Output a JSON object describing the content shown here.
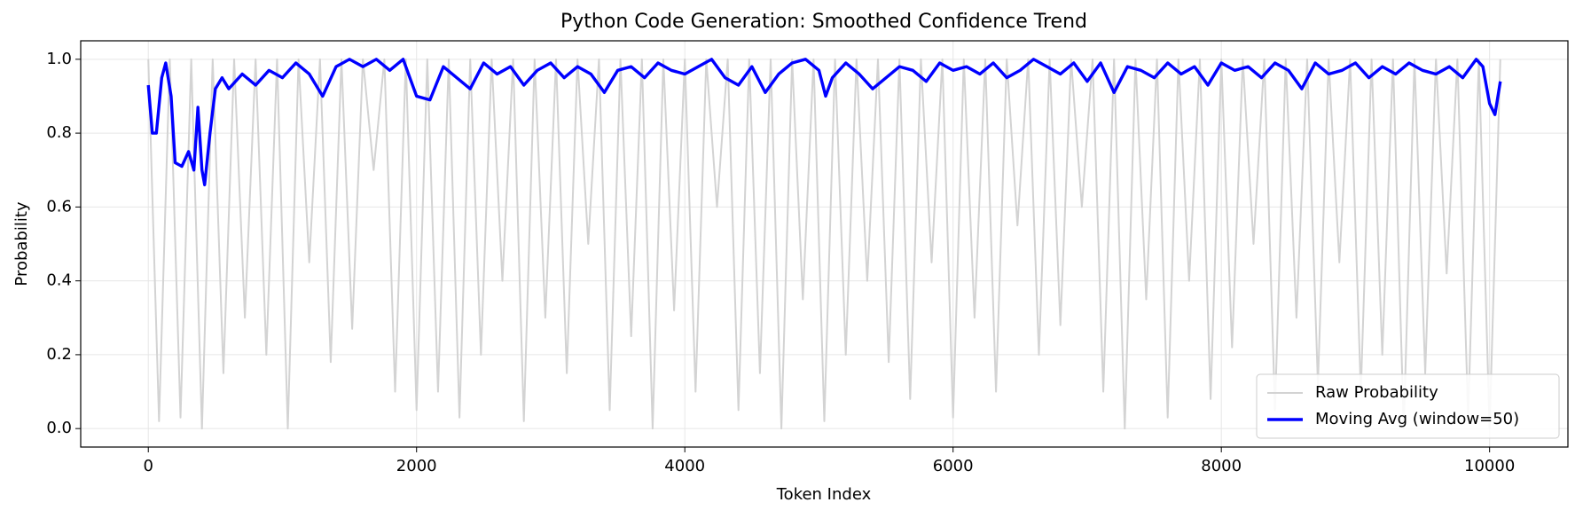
{
  "chart_data": {
    "type": "line",
    "title": "Python Code Generation: Smoothed Confidence Trend",
    "x_label": "Token Index",
    "y_label": "Probability",
    "xlim": [
      -504,
      10584
    ],
    "xticks": [
      0,
      2000,
      4000,
      6000,
      8000,
      10000
    ],
    "ylim": [
      -0.05,
      1.05
    ],
    "yticks": [
      0.0,
      0.2,
      0.4,
      0.6,
      0.8,
      1.0
    ],
    "grid": true,
    "legend": "lower right",
    "series": [
      {
        "name": "Raw Probability",
        "color": "#d3d3d3",
        "x": [
          0,
          80,
          160,
          240,
          320,
          400,
          480,
          560,
          640,
          720,
          800,
          880,
          960,
          1040,
          1120,
          1200,
          1280,
          1360,
          1440,
          1520,
          1600,
          1680,
          1760,
          1840,
          1920,
          2000,
          2080,
          2160,
          2240,
          2320,
          2400,
          2480,
          2560,
          2640,
          2720,
          2800,
          2880,
          2960,
          3040,
          3120,
          3200,
          3280,
          3360,
          3440,
          3520,
          3600,
          3680,
          3760,
          3840,
          3920,
          4000,
          4080,
          4160,
          4240,
          4320,
          4400,
          4480,
          4560,
          4640,
          4720,
          4800,
          4880,
          4960,
          5040,
          5120,
          5200,
          5280,
          5360,
          5440,
          5520,
          5600,
          5680,
          5760,
          5840,
          5920,
          6000,
          6080,
          6160,
          6240,
          6320,
          6400,
          6480,
          6560,
          6640,
          6720,
          6800,
          6880,
          6960,
          7040,
          7120,
          7200,
          7280,
          7360,
          7440,
          7520,
          7600,
          7680,
          7760,
          7840,
          7920,
          8000,
          8080,
          8160,
          8240,
          8320,
          8400,
          8480,
          8560,
          8640,
          8720,
          8800,
          8880,
          8960,
          9040,
          9120,
          9200,
          9280,
          9360,
          9440,
          9520,
          9600,
          9680,
          9760,
          9840,
          9920,
          10000,
          10080
        ],
        "values": [
          1.0,
          0.02,
          1.0,
          0.03,
          1.0,
          0.0,
          1.0,
          0.15,
          1.0,
          0.3,
          1.0,
          0.2,
          1.0,
          0.0,
          1.0,
          0.45,
          1.0,
          0.18,
          1.0,
          0.27,
          1.0,
          0.7,
          1.0,
          0.1,
          1.0,
          0.05,
          1.0,
          0.1,
          1.0,
          0.03,
          1.0,
          0.2,
          1.0,
          0.4,
          1.0,
          0.02,
          1.0,
          0.3,
          1.0,
          0.15,
          1.0,
          0.5,
          1.0,
          0.05,
          1.0,
          0.25,
          1.0,
          0.0,
          1.0,
          0.32,
          1.0,
          0.1,
          1.0,
          0.6,
          1.0,
          0.05,
          1.0,
          0.15,
          1.0,
          0.0,
          1.0,
          0.35,
          1.0,
          0.02,
          1.0,
          0.2,
          1.0,
          0.4,
          1.0,
          0.18,
          1.0,
          0.08,
          1.0,
          0.45,
          1.0,
          0.03,
          1.0,
          0.3,
          1.0,
          0.1,
          1.0,
          0.55,
          1.0,
          0.2,
          1.0,
          0.28,
          1.0,
          0.6,
          1.0,
          0.1,
          1.0,
          0.0,
          1.0,
          0.35,
          1.0,
          0.03,
          1.0,
          0.4,
          1.0,
          0.08,
          1.0,
          0.22,
          1.0,
          0.5,
          1.0,
          0.05,
          1.0,
          0.3,
          1.0,
          0.12,
          1.0,
          0.45,
          1.0,
          0.1,
          1.0,
          0.2,
          1.0,
          0.0,
          1.0,
          0.15,
          1.0,
          0.42,
          1.0,
          0.03,
          1.0,
          0.0,
          1.0
        ]
      },
      {
        "name": "Moving Avg (window=50)",
        "color": "#0000ff",
        "x": [
          0,
          30,
          60,
          100,
          130,
          170,
          200,
          250,
          300,
          340,
          370,
          400,
          420,
          460,
          500,
          550,
          600,
          700,
          800,
          900,
          1000,
          1100,
          1200,
          1300,
          1400,
          1500,
          1600,
          1700,
          1800,
          1900,
          2000,
          2100,
          2200,
          2300,
          2400,
          2500,
          2600,
          2700,
          2800,
          2900,
          3000,
          3100,
          3200,
          3300,
          3400,
          3500,
          3600,
          3700,
          3800,
          3900,
          4000,
          4100,
          4200,
          4300,
          4400,
          4500,
          4600,
          4700,
          4800,
          4900,
          5000,
          5050,
          5100,
          5200,
          5300,
          5400,
          5500,
          5600,
          5700,
          5800,
          5900,
          6000,
          6100,
          6200,
          6300,
          6400,
          6500,
          6600,
          6700,
          6800,
          6900,
          7000,
          7100,
          7200,
          7300,
          7400,
          7500,
          7600,
          7700,
          7800,
          7900,
          8000,
          8100,
          8200,
          8300,
          8400,
          8500,
          8600,
          8700,
          8800,
          8900,
          9000,
          9100,
          9200,
          9300,
          9400,
          9500,
          9600,
          9700,
          9800,
          9900,
          9950,
          10000,
          10040,
          10080
        ],
        "values": [
          0.93,
          0.8,
          0.8,
          0.95,
          0.99,
          0.9,
          0.72,
          0.71,
          0.75,
          0.7,
          0.87,
          0.7,
          0.66,
          0.8,
          0.92,
          0.95,
          0.92,
          0.96,
          0.93,
          0.97,
          0.95,
          0.99,
          0.96,
          0.9,
          0.98,
          1.0,
          0.98,
          1.0,
          0.97,
          1.0,
          0.9,
          0.89,
          0.98,
          0.95,
          0.92,
          0.99,
          0.96,
          0.98,
          0.93,
          0.97,
          0.99,
          0.95,
          0.98,
          0.96,
          0.91,
          0.97,
          0.98,
          0.95,
          0.99,
          0.97,
          0.96,
          0.98,
          1.0,
          0.95,
          0.93,
          0.98,
          0.91,
          0.96,
          0.99,
          1.0,
          0.97,
          0.9,
          0.95,
          0.99,
          0.96,
          0.92,
          0.95,
          0.98,
          0.97,
          0.94,
          0.99,
          0.97,
          0.98,
          0.96,
          0.99,
          0.95,
          0.97,
          1.0,
          0.98,
          0.96,
          0.99,
          0.94,
          0.99,
          0.91,
          0.98,
          0.97,
          0.95,
          0.99,
          0.96,
          0.98,
          0.93,
          0.99,
          0.97,
          0.98,
          0.95,
          0.99,
          0.97,
          0.92,
          0.99,
          0.96,
          0.97,
          0.99,
          0.95,
          0.98,
          0.96,
          0.99,
          0.97,
          0.96,
          0.98,
          0.95,
          1.0,
          0.98,
          0.88,
          0.85,
          0.94
        ]
      }
    ]
  }
}
